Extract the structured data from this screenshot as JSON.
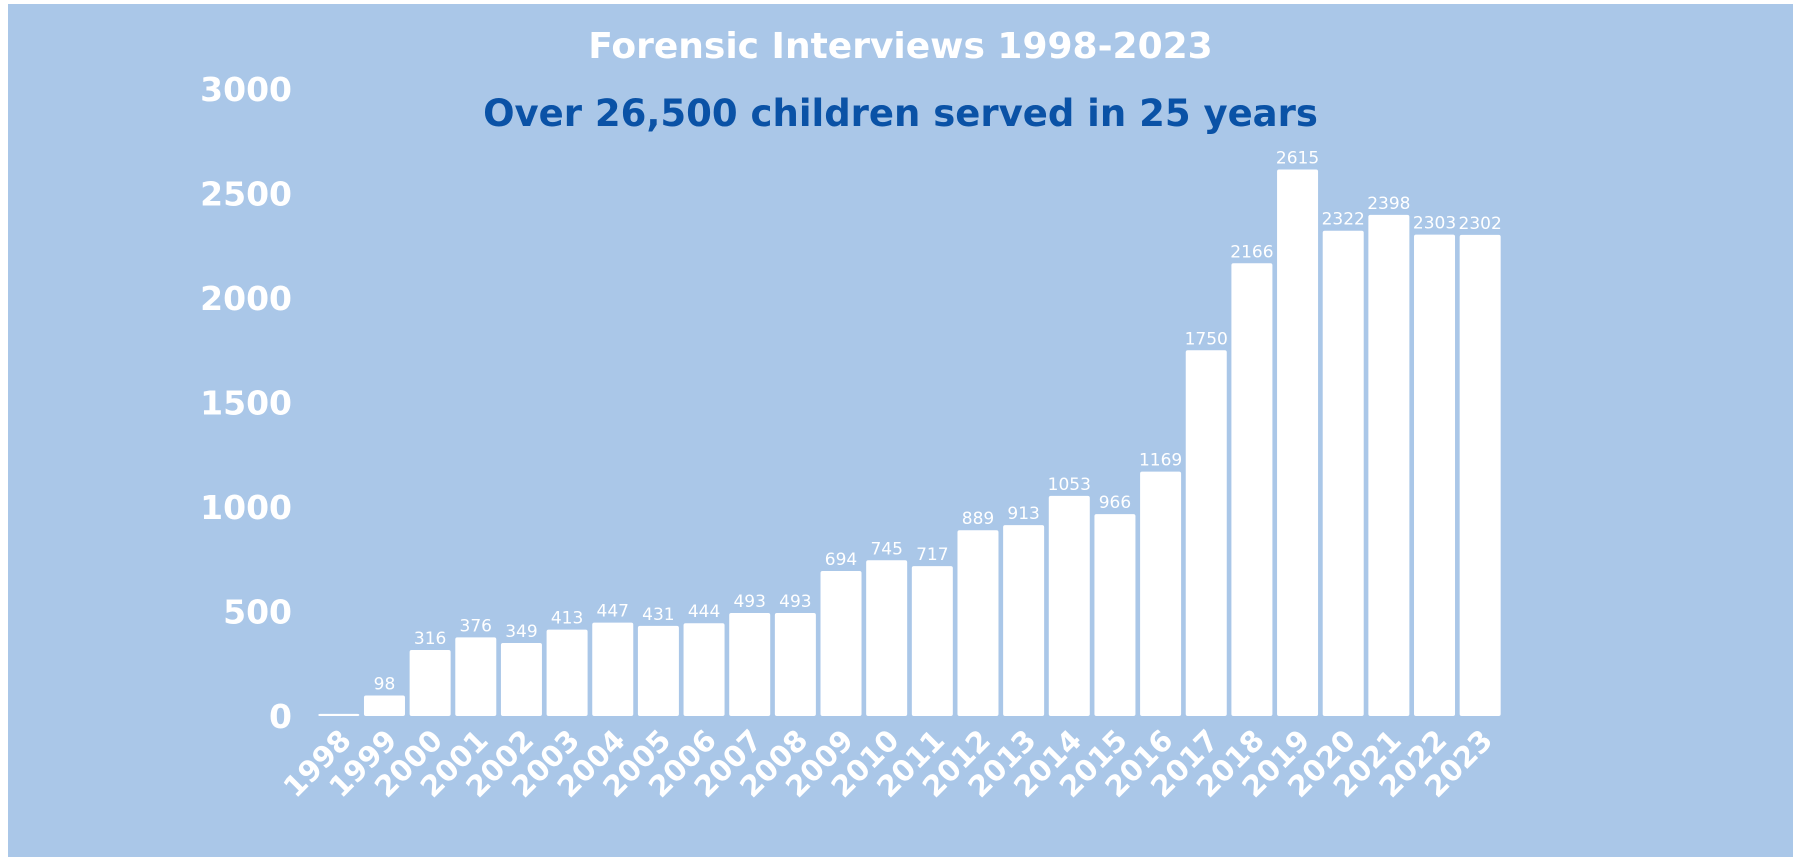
{
  "colors": {
    "background": "#aac7e8",
    "bar": "#ffffff",
    "title": "#ffffff",
    "subtitle": "#0a52a6",
    "axis_text": "#ffffff"
  },
  "chart_data": {
    "type": "bar",
    "title": "Forensic Interviews 1998-2023",
    "subtitle": "Over 26,500 children served in 25 years",
    "xlabel": "",
    "ylabel": "",
    "ylim": [
      0,
      3000
    ],
    "yticks": [
      0,
      500,
      1000,
      1500,
      2000,
      2500,
      3000
    ],
    "grid": false,
    "legend": "none",
    "categories": [
      "1998",
      "1999",
      "2000",
      "2001",
      "2002",
      "2003",
      "2004",
      "2005",
      "2006",
      "2007",
      "2008",
      "2009",
      "2010",
      "2011",
      "2012",
      "2013",
      "2014",
      "2015",
      "2016",
      "2017",
      "2018",
      "2019",
      "2020",
      "2021",
      "2022",
      "2023"
    ],
    "values": [
      10,
      98,
      316,
      376,
      349,
      413,
      447,
      431,
      444,
      493,
      493,
      694,
      745,
      717,
      889,
      913,
      1053,
      966,
      1169,
      1750,
      2166,
      2615,
      2322,
      2398,
      2303,
      2302
    ],
    "data_labels": [
      "",
      "98",
      "316",
      "376",
      "349",
      "413",
      "447",
      "431",
      "444",
      "493",
      "493",
      "694",
      "745",
      "717",
      "889",
      "913",
      "1053",
      "966",
      "1169",
      "1750",
      "2166",
      "2615",
      "2322",
      "2398",
      "2303",
      "2302"
    ]
  }
}
